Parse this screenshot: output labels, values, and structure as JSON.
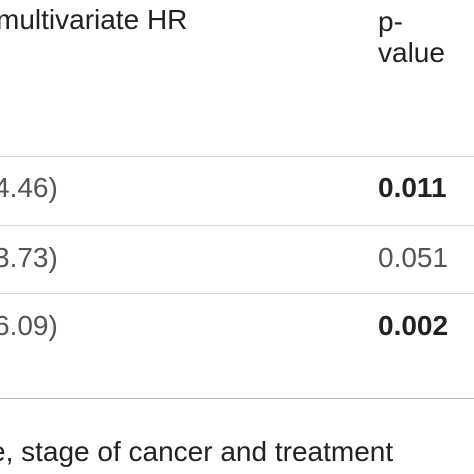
{
  "table": {
    "header": {
      "hr_label": "multivariate HR",
      "p_label_line1": "p-",
      "p_label_line2": "value"
    },
    "rows": [
      {
        "ci": "4.46)",
        "p_value": "0.011",
        "significant": true
      },
      {
        "ci": "3.73)",
        "p_value": "0.051",
        "significant": false
      },
      {
        "ci": "6.09)",
        "p_value": "0.002",
        "significant": true
      }
    ]
  },
  "footnote": "e, stage of cancer and treatment"
}
